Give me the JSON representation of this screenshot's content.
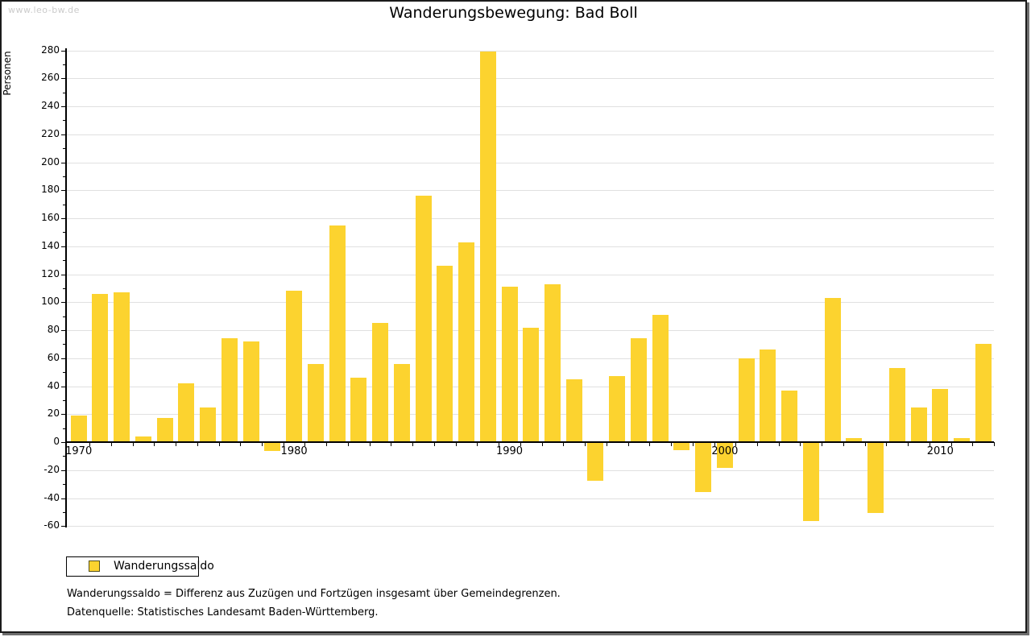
{
  "watermark": "www.leo-bw.de",
  "title": "Wanderungsbewegung: Bad Boll",
  "y_axis_title": "Personen",
  "legend": {
    "label": "Wanderungssaldo"
  },
  "footnotes": {
    "definition": "Wanderungssaldo = Differenz aus Zuzügen und Fortzügen insgesamt über Gemeindegrenzen.",
    "source": "Datenquelle: Statistisches Landesamt Baden-Württemberg."
  },
  "colors": {
    "bar": "#fcd32f",
    "grid": "#e0e0e0",
    "axis": "#000000",
    "watermark": "#cbcbcb",
    "legend_swatch_border": "#55511c"
  },
  "chart_data": {
    "type": "bar",
    "title": "Wanderungsbewegung: Bad Boll",
    "xlabel": "",
    "ylabel": "Personen",
    "ylim": [
      -60,
      280
    ],
    "ytick_step": 20,
    "grid": true,
    "legend_position": "bottom-left",
    "x_tick_labels": [
      1970,
      1980,
      1990,
      2000,
      2010
    ],
    "x": [
      1970,
      1971,
      1972,
      1973,
      1974,
      1975,
      1976,
      1977,
      1978,
      1979,
      1980,
      1981,
      1982,
      1983,
      1984,
      1985,
      1986,
      1987,
      1988,
      1989,
      1990,
      1991,
      1992,
      1993,
      1994,
      1995,
      1996,
      1997,
      1998,
      1999,
      2000,
      2001,
      2002,
      2003,
      2004,
      2005,
      2006,
      2007,
      2008,
      2009,
      2010,
      2011,
      2012
    ],
    "series": [
      {
        "name": "Wanderungssaldo",
        "values": [
          19,
          106,
          107,
          4,
          17,
          42,
          25,
          74,
          72,
          -6,
          108,
          56,
          155,
          46,
          85,
          56,
          176,
          126,
          143,
          279,
          111,
          82,
          113,
          45,
          -27,
          47,
          74,
          91,
          -5,
          -35,
          -18,
          60,
          66,
          37,
          -56,
          103,
          3,
          -50,
          53,
          25,
          38,
          3,
          70
        ]
      }
    ]
  }
}
